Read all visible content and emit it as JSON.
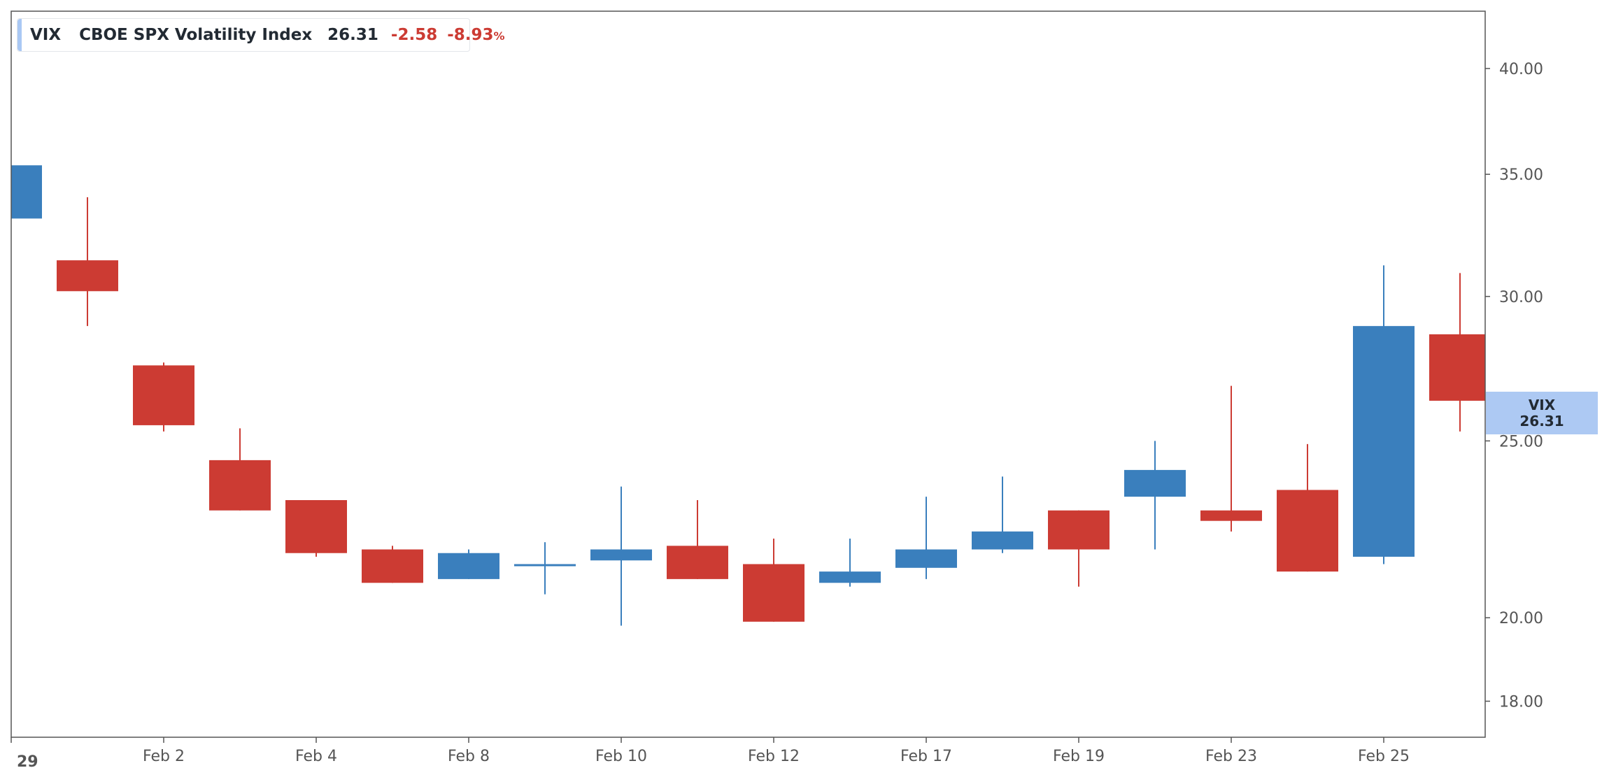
{
  "legend": {
    "symbol": "VIX",
    "name": "CBOE SPX Volatility Index",
    "last": "26.31",
    "change": "-2.58",
    "change_pct": "-8.93",
    "pct_sign": "%"
  },
  "price_tag": {
    "symbol": "VIX",
    "value": "26.31"
  },
  "colors": {
    "up": "#3a7fbd",
    "down": "#cc3b33",
    "frame": "#555555",
    "tick_text": "#555555",
    "legend_text": "#222a33",
    "price_tag_bg": "#adc9f3",
    "legend_accent": "#a9c8f4"
  },
  "chart_data": {
    "type": "candlestick",
    "y_scale": "log",
    "ylim": [
      17.2,
      43.0
    ],
    "y_ticks": [
      "18.00",
      "20.00",
      "25.00",
      "30.00",
      "35.00",
      "40.00"
    ],
    "x_tick_labels": [
      "29",
      "Feb 2",
      "Feb 4",
      "Feb 8",
      "Feb 10",
      "Feb 12",
      "Feb 17",
      "Feb 19",
      "Feb 23",
      "Feb 25"
    ],
    "candles": [
      {
        "open": 33.1,
        "high": 35.4,
        "low": 33.1,
        "close": 35.4
      },
      {
        "open": 31.4,
        "high": 34.0,
        "low": 28.9,
        "close": 30.2
      },
      {
        "open": 27.5,
        "high": 27.6,
        "low": 25.3,
        "close": 25.5
      },
      {
        "open": 24.4,
        "high": 25.4,
        "low": 22.9,
        "close": 22.9
      },
      {
        "open": 23.2,
        "high": 23.2,
        "low": 21.6,
        "close": 21.7
      },
      {
        "open": 21.8,
        "high": 21.9,
        "low": 20.9,
        "close": 20.9
      },
      {
        "open": 21.0,
        "high": 21.8,
        "low": 21.0,
        "close": 21.7
      },
      {
        "open": 21.4,
        "high": 22.0,
        "low": 20.6,
        "close": 21.4
      },
      {
        "open": 21.5,
        "high": 23.6,
        "low": 19.8,
        "close": 21.8
      },
      {
        "open": 21.9,
        "high": 23.2,
        "low": 21.0,
        "close": 21.0
      },
      {
        "open": 21.4,
        "high": 22.1,
        "low": 19.9,
        "close": 19.9
      },
      {
        "open": 20.9,
        "high": 22.1,
        "low": 20.8,
        "close": 21.2
      },
      {
        "open": 21.3,
        "high": 23.3,
        "low": 21.0,
        "close": 21.8
      },
      {
        "open": 21.8,
        "high": 23.9,
        "low": 21.7,
        "close": 22.3
      },
      {
        "open": 22.9,
        "high": 22.9,
        "low": 20.8,
        "close": 21.8
      },
      {
        "open": 23.3,
        "high": 25.0,
        "low": 21.8,
        "close": 24.1
      },
      {
        "open": 22.9,
        "high": 26.8,
        "low": 22.3,
        "close": 22.6
      },
      {
        "open": 23.5,
        "high": 24.9,
        "low": 21.2,
        "close": 21.2
      },
      {
        "open": 21.6,
        "high": 31.2,
        "low": 21.4,
        "close": 28.9
      },
      {
        "open": 28.6,
        "high": 30.9,
        "low": 25.3,
        "close": 26.3
      }
    ]
  }
}
